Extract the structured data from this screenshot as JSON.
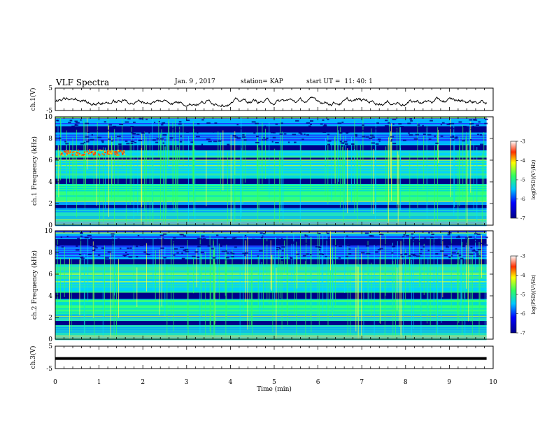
{
  "header": {
    "title": "VLF Spectra",
    "date": "Jan. 9 , 2017",
    "station": "station= KAP",
    "start_ut_label": "start  UT =",
    "start_ut_value": "11: 40: 1"
  },
  "colors": {
    "background_low": "#00008a",
    "mid": "#00c8ff",
    "green": "#30ff60",
    "high": "#ff3000",
    "trace": "#000000"
  },
  "chart_data": [
    {
      "type": "line",
      "name": "ch1-waveform",
      "ylabel": "ch.1(V)",
      "ylim": [
        -5,
        5
      ],
      "yticks": [
        "5",
        "-5"
      ],
      "xlim": [
        0,
        10
      ],
      "x_end": 9.85,
      "mean": -1.0,
      "amplitude": 2.2
    },
    {
      "type": "heatmap",
      "name": "ch1-spectrogram",
      "ylabel": "ch.1 Frequency (kHz)",
      "yticks": [
        "0",
        "2",
        "4",
        "6",
        "8",
        "10"
      ],
      "ylim": [
        0,
        10
      ],
      "xlim": [
        0,
        10
      ],
      "x_end": 9.85,
      "dark_bands_khz": [
        [
          1.6,
          1.9
        ],
        [
          3.9,
          4.3
        ],
        [
          7.0,
          7.4
        ],
        [
          8.6,
          9.2
        ],
        [
          6.1,
          6.3
        ]
      ],
      "bright_lines_khz": [
        0.5,
        2.2,
        5.5,
        6.0,
        9.9
      ],
      "hot_spot": {
        "x": [
          0.1,
          1.6
        ],
        "f": [
          6.5,
          7.0
        ]
      },
      "colorbar": {
        "label": "log(PSD)(V²/Hz)",
        "ticks": [
          "-3",
          "-4",
          "-5",
          "-6",
          "-7"
        ],
        "range": [
          -7,
          -3
        ]
      }
    },
    {
      "type": "heatmap",
      "name": "ch2-spectrogram",
      "ylabel": "ch.2 Frequency (kHz)",
      "yticks": [
        "0",
        "2",
        "4",
        "6",
        "8",
        "10"
      ],
      "ylim": [
        0,
        10
      ],
      "xlim": [
        0,
        10
      ],
      "x_end": 9.85,
      "dark_bands_khz": [
        [
          1.3,
          1.7
        ],
        [
          3.8,
          4.3
        ],
        [
          7.0,
          7.4
        ],
        [
          8.7,
          9.3
        ]
      ],
      "bright_lines_khz": [
        0.3,
        2.1,
        5.3,
        6.0,
        9.8
      ],
      "colorbar": {
        "label": "log(PSD)(V²/Hz)",
        "ticks": [
          "-3",
          "-4",
          "-5",
          "-6",
          "-7"
        ],
        "range": [
          -7,
          -3
        ]
      }
    },
    {
      "type": "line",
      "name": "ch3-waveform",
      "ylabel": "ch.3(V)",
      "ylim": [
        -5,
        5
      ],
      "yticks": [
        "5",
        "-5"
      ],
      "xlim": [
        0,
        10
      ],
      "x_end": 9.85,
      "constant": -0.5,
      "xlabel": "Time  (min)",
      "xticks": [
        "0",
        "1",
        "2",
        "3",
        "4",
        "5",
        "6",
        "7",
        "8",
        "9",
        "10"
      ]
    }
  ]
}
